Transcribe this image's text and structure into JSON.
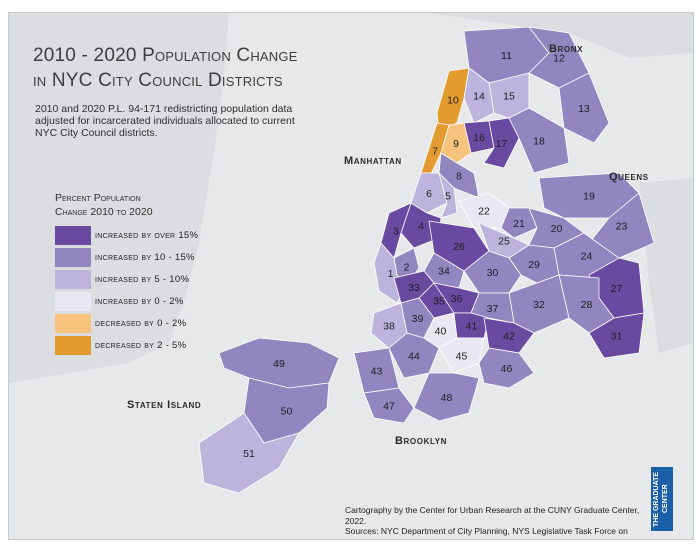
{
  "title": {
    "line1": "2010 - 2020 Population Change",
    "line2": "in NYC City Council Districts"
  },
  "subtitle": "2010 and 2020 P.L. 94-171 redistricting population data adjusted for incarcerated individuals allocated to current NYC City Council districts.",
  "legend": {
    "title_line1": "Percent Population",
    "title_line2": "Change 2010 to 2020",
    "items": [
      {
        "label": "increased by over 15%",
        "color": "#6a4aa1"
      },
      {
        "label": "increased by 10 - 15%",
        "color": "#9186bf"
      },
      {
        "label": "increased by 5 - 10%",
        "color": "#bcb4dc"
      },
      {
        "label": "increased by 0 - 2%",
        "color": "#e9e8f2"
      },
      {
        "label": "decreased by 0 - 2%",
        "color": "#f7c37c"
      },
      {
        "label": "decreased by 2 - 5%",
        "color": "#e39a2f"
      }
    ]
  },
  "boroughs": {
    "bronx": "Bronx",
    "manhattan": "Manhattan",
    "queens": "Queens",
    "staten_island": "Staten Island",
    "brooklyn": "Brooklyn"
  },
  "districts": [
    {
      "id": "1",
      "class": 2
    },
    {
      "id": "2",
      "class": 1
    },
    {
      "id": "3",
      "class": 0
    },
    {
      "id": "4",
      "class": 0
    },
    {
      "id": "5",
      "class": 2
    },
    {
      "id": "6",
      "class": 2
    },
    {
      "id": "7",
      "class": 5
    },
    {
      "id": "8",
      "class": 1
    },
    {
      "id": "9",
      "class": 4
    },
    {
      "id": "10",
      "class": 5
    },
    {
      "id": "11",
      "class": 1
    },
    {
      "id": "12",
      "class": 1
    },
    {
      "id": "13",
      "class": 1
    },
    {
      "id": "14",
      "class": 2
    },
    {
      "id": "15",
      "class": 2
    },
    {
      "id": "16",
      "class": 0
    },
    {
      "id": "17",
      "class": 0
    },
    {
      "id": "18",
      "class": 1
    },
    {
      "id": "19",
      "class": 1
    },
    {
      "id": "20",
      "class": 1
    },
    {
      "id": "21",
      "class": 1
    },
    {
      "id": "22",
      "class": 3
    },
    {
      "id": "23",
      "class": 1
    },
    {
      "id": "24",
      "class": 1
    },
    {
      "id": "25",
      "class": 2
    },
    {
      "id": "26",
      "class": 0
    },
    {
      "id": "27",
      "class": 0
    },
    {
      "id": "28",
      "class": 1
    },
    {
      "id": "29",
      "class": 1
    },
    {
      "id": "30",
      "class": 1
    },
    {
      "id": "31",
      "class": 0
    },
    {
      "id": "32",
      "class": 1
    },
    {
      "id": "33",
      "class": 0
    },
    {
      "id": "34",
      "class": 1
    },
    {
      "id": "35",
      "class": 0
    },
    {
      "id": "36",
      "class": 0
    },
    {
      "id": "37",
      "class": 1
    },
    {
      "id": "38",
      "class": 2
    },
    {
      "id": "39",
      "class": 1
    },
    {
      "id": "40",
      "class": 3
    },
    {
      "id": "41",
      "class": 0
    },
    {
      "id": "42",
      "class": 0
    },
    {
      "id": "43",
      "class": 1
    },
    {
      "id": "44",
      "class": 1
    },
    {
      "id": "45",
      "class": 3
    },
    {
      "id": "46",
      "class": 1
    },
    {
      "id": "47",
      "class": 1
    },
    {
      "id": "48",
      "class": 1
    },
    {
      "id": "49",
      "class": 1
    },
    {
      "id": "50",
      "class": 1
    },
    {
      "id": "51",
      "class": 2
    }
  ],
  "credit": {
    "line1": "Cartography by the Center for Urban Research at the CUNY Graduate Center, 2022.",
    "line2": "Sources: NYC Department of City Planning, NYS Legislative Task Force on Demographic Research and Reapportionment."
  },
  "logo_text": "THE GRADUATE CENTER"
}
